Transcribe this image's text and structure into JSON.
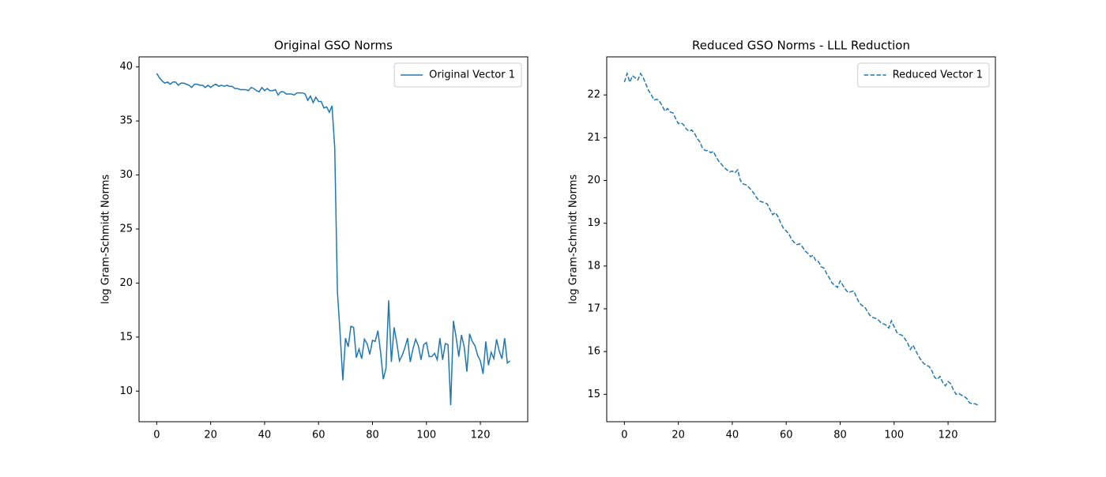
{
  "chart_data": [
    {
      "type": "line",
      "title": "Original GSO Norms",
      "ylabel": "log Gram-Schmidt Norms",
      "x": [
        0,
        1,
        2,
        3,
        4,
        5,
        6,
        7,
        8,
        9,
        10,
        11,
        12,
        13,
        14,
        15,
        16,
        17,
        18,
        19,
        20,
        21,
        22,
        23,
        24,
        25,
        26,
        27,
        28,
        29,
        30,
        31,
        32,
        33,
        34,
        35,
        36,
        37,
        38,
        39,
        40,
        41,
        42,
        43,
        44,
        45,
        46,
        47,
        48,
        49,
        50,
        51,
        52,
        53,
        54,
        55,
        56,
        57,
        58,
        59,
        60,
        61,
        62,
        63,
        64,
        65,
        66,
        67,
        68,
        69,
        70,
        71,
        72,
        73,
        74,
        75,
        76,
        77,
        78,
        79,
        80,
        81,
        82,
        83,
        84,
        85,
        86,
        87,
        88,
        89,
        90,
        91,
        92,
        93,
        94,
        95,
        96,
        97,
        98,
        99,
        100,
        101,
        102,
        103,
        104,
        105,
        106,
        107,
        108,
        109,
        110,
        111,
        112,
        113,
        114,
        115,
        116,
        117,
        118,
        119,
        120,
        121,
        122,
        123,
        124,
        125,
        126,
        127,
        128,
        129,
        130,
        131
      ],
      "series": [
        {
          "name": "Original Vector 1",
          "color": "#1f77b4",
          "linestyle": "solid",
          "values": [
            39.4,
            39.0,
            38.7,
            38.5,
            38.6,
            38.4,
            38.6,
            38.6,
            38.3,
            38.5,
            38.5,
            38.4,
            38.3,
            38.1,
            38.4,
            38.4,
            38.3,
            38.3,
            38.1,
            38.3,
            38.1,
            38.3,
            38.4,
            38.2,
            38.3,
            38.2,
            38.3,
            38.2,
            38.2,
            38.0,
            38.0,
            37.9,
            37.9,
            37.9,
            37.8,
            38.1,
            38.0,
            37.8,
            37.7,
            38.1,
            37.8,
            38.0,
            37.8,
            37.8,
            37.9,
            37.4,
            37.7,
            37.7,
            37.5,
            37.5,
            37.5,
            37.4,
            37.6,
            37.6,
            37.6,
            37.5,
            36.9,
            37.3,
            36.7,
            37.2,
            36.8,
            36.8,
            36.2,
            36.3,
            35.8,
            36.4,
            32.5,
            19.2,
            15.3,
            11.0,
            14.9,
            14.1,
            16.0,
            15.9,
            13.1,
            13.9,
            13.0,
            14.8,
            14.4,
            13.4,
            14.7,
            14.6,
            15.6,
            13.6,
            11.1,
            12.1,
            18.4,
            12.7,
            15.9,
            14.5,
            12.8,
            13.3,
            14.0,
            14.9,
            12.7,
            13.9,
            14.8,
            14.2,
            12.9,
            14.3,
            14.5,
            13.2,
            13.2,
            13.5,
            12.9,
            14.9,
            12.9,
            14.4,
            14.3,
            8.7,
            16.5,
            15.0,
            13.2,
            15.2,
            14.1,
            11.8,
            15.3,
            14.6,
            14.2,
            13.3,
            12.8,
            11.6,
            14.6,
            12.4,
            13.6,
            13.0,
            14.8,
            13.7,
            13.0,
            14.9,
            12.6,
            12.8
          ]
        }
      ],
      "xlim": [
        -6.55,
        137.55
      ],
      "xticks": [
        0,
        20,
        40,
        60,
        80,
        100,
        120
      ],
      "ylim": [
        7.17,
        40.93
      ],
      "yticks": [
        10,
        15,
        20,
        25,
        30,
        35,
        40
      ],
      "legend": "upper right"
    },
    {
      "type": "line",
      "title": "Reduced GSO Norms - LLL Reduction",
      "ylabel": "log Gram-Schmidt Norms",
      "x": [
        0,
        1,
        2,
        3,
        4,
        5,
        6,
        7,
        8,
        9,
        10,
        11,
        12,
        13,
        14,
        15,
        16,
        17,
        18,
        19,
        20,
        21,
        22,
        23,
        24,
        25,
        26,
        27,
        28,
        29,
        30,
        31,
        32,
        33,
        34,
        35,
        36,
        37,
        38,
        39,
        40,
        41,
        42,
        43,
        44,
        45,
        46,
        47,
        48,
        49,
        50,
        51,
        52,
        53,
        54,
        55,
        56,
        57,
        58,
        59,
        60,
        61,
        62,
        63,
        64,
        65,
        66,
        67,
        68,
        69,
        70,
        71,
        72,
        73,
        74,
        75,
        76,
        77,
        78,
        79,
        80,
        81,
        82,
        83,
        84,
        85,
        86,
        87,
        88,
        89,
        90,
        91,
        92,
        93,
        94,
        95,
        96,
        97,
        98,
        99,
        100,
        101,
        102,
        103,
        104,
        105,
        106,
        107,
        108,
        109,
        110,
        111,
        112,
        113,
        114,
        115,
        116,
        117,
        118,
        119,
        120,
        121,
        122,
        123,
        124,
        125,
        126,
        127,
        128,
        129,
        130,
        131
      ],
      "series": [
        {
          "name": "Reduced Vector 1",
          "color": "#1f77b4",
          "linestyle": "dashed",
          "values": [
            22.3,
            22.5,
            22.3,
            22.45,
            22.4,
            22.35,
            22.5,
            22.4,
            22.25,
            22.1,
            22.0,
            21.88,
            21.9,
            21.85,
            21.75,
            21.62,
            21.68,
            21.6,
            21.58,
            21.45,
            21.33,
            21.35,
            21.3,
            21.2,
            21.15,
            21.18,
            21.1,
            20.98,
            20.9,
            20.75,
            20.7,
            20.7,
            20.65,
            20.68,
            20.55,
            20.45,
            20.38,
            20.3,
            20.25,
            20.2,
            20.22,
            20.18,
            20.25,
            20.0,
            19.92,
            19.9,
            19.85,
            19.78,
            19.7,
            19.6,
            19.52,
            19.5,
            19.48,
            19.45,
            19.32,
            19.2,
            19.25,
            19.15,
            19.0,
            18.88,
            18.82,
            18.75,
            18.62,
            18.55,
            18.5,
            18.52,
            18.45,
            18.35,
            18.3,
            18.22,
            18.25,
            18.12,
            18.1,
            17.98,
            17.95,
            17.82,
            17.72,
            17.6,
            17.55,
            17.5,
            17.65,
            17.55,
            17.45,
            17.38,
            17.4,
            17.42,
            17.28,
            17.15,
            17.08,
            17.05,
            16.95,
            16.85,
            16.8,
            16.78,
            16.75,
            16.68,
            16.65,
            16.62,
            16.55,
            16.72,
            16.58,
            16.45,
            16.4,
            16.38,
            16.3,
            16.2,
            16.05,
            16.15,
            16.02,
            15.9,
            15.8,
            15.72,
            15.68,
            15.65,
            15.55,
            15.4,
            15.35,
            15.42,
            15.28,
            15.2,
            15.3,
            15.25,
            15.1,
            15.0,
            15.02,
            14.98,
            14.95,
            14.9,
            14.8,
            14.78,
            14.78,
            14.75
          ]
        }
      ],
      "xlim": [
        -6.55,
        137.55
      ],
      "xticks": [
        0,
        20,
        40,
        60,
        80,
        100,
        120
      ],
      "ylim": [
        14.36,
        22.89
      ],
      "yticks": [
        15,
        16,
        17,
        18,
        19,
        20,
        21,
        22
      ],
      "legend": "upper right"
    }
  ]
}
